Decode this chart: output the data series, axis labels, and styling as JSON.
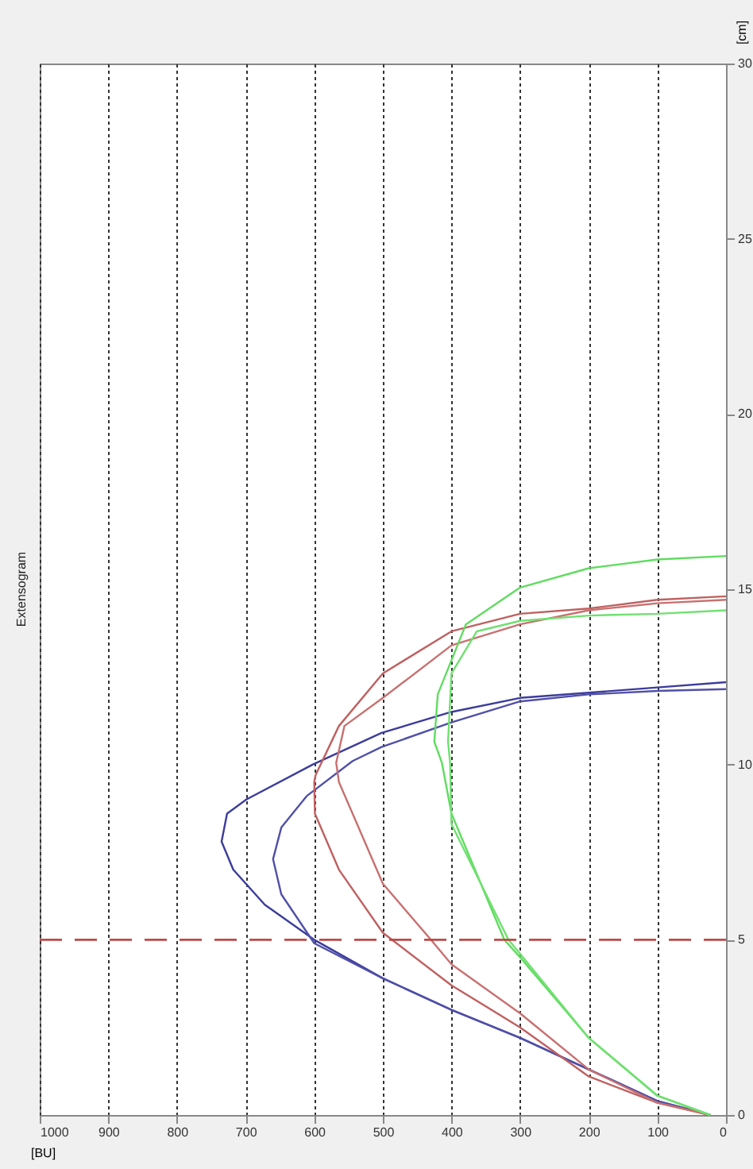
{
  "chart_data": {
    "type": "line",
    "title": "Extensogram",
    "xlabel": "[BU]",
    "ylabel": "[cm]",
    "xlim": [
      1000,
      0
    ],
    "xticks": [
      1000,
      900,
      800,
      700,
      600,
      500,
      400,
      300,
      200,
      100,
      0
    ],
    "ylim": [
      0,
      30
    ],
    "yticks": [
      0,
      5,
      10,
      15,
      20,
      25,
      30
    ],
    "grid": "x",
    "ref_lines": [
      {
        "axis": "y",
        "value": 5,
        "color": "#c04848",
        "line_style": "dashed"
      }
    ],
    "series": [
      {
        "color": "#3c3c9c",
        "x": [
          23,
          100,
          200,
          300,
          400,
          500,
          600,
          672,
          718,
          735,
          727,
          699,
          602,
          502,
          400,
          300,
          200,
          100,
          0
        ],
        "values": [
          0,
          0.4,
          1.3,
          2.2,
          3.0,
          3.9,
          5.0,
          6.0,
          7.0,
          7.8,
          8.6,
          9.0,
          10.0,
          10.9,
          11.5,
          11.9,
          12.05,
          12.2,
          12.35
        ]
      },
      {
        "color": "#5050a8",
        "x": [
          23,
          100,
          200,
          300,
          400,
          500,
          600,
          648,
          660,
          648,
          611,
          544,
          502,
          400,
          300,
          200,
          100,
          0
        ],
        "values": [
          0,
          0.4,
          1.3,
          2.2,
          3.0,
          3.9,
          4.9,
          6.3,
          7.3,
          8.2,
          9.1,
          10.1,
          10.5,
          11.2,
          11.8,
          12.0,
          12.1,
          12.15
        ]
      },
      {
        "color": "#c06060",
        "x": [
          23,
          100,
          200,
          300,
          400,
          500,
          564,
          599,
          600,
          598,
          564,
          500,
          400,
          300,
          200,
          100,
          0
        ],
        "values": [
          0,
          0.35,
          1.1,
          2.5,
          3.7,
          5.2,
          7.0,
          8.6,
          9.5,
          9.7,
          11.1,
          12.6,
          13.8,
          14.3,
          14.45,
          14.7,
          14.8
        ]
      },
      {
        "color": "#c87070",
        "x": [
          23,
          100,
          200,
          300,
          400,
          430,
          500,
          564,
          568,
          556,
          500,
          400,
          300,
          200,
          100,
          0
        ],
        "values": [
          0,
          0.35,
          1.3,
          2.9,
          4.3,
          5.0,
          6.6,
          9.5,
          10.05,
          11.1,
          11.9,
          13.4,
          14.0,
          14.4,
          14.6,
          14.7
        ]
      },
      {
        "color": "#60dc60",
        "x": [
          23,
          100,
          200,
          300,
          323,
          400,
          414,
          425,
          420,
          379,
          300,
          200,
          100,
          0
        ],
        "values": [
          0,
          0.55,
          2.2,
          4.5,
          5.0,
          8.6,
          10.05,
          10.65,
          12.0,
          14.0,
          15.05,
          15.6,
          15.85,
          15.95
        ]
      },
      {
        "color": "#70e070",
        "x": [
          23,
          100,
          200,
          300,
          317,
          400,
          402,
          405,
          400,
          363,
          300,
          200,
          100,
          0
        ],
        "values": [
          0,
          0.55,
          2.2,
          4.6,
          5.0,
          8.3,
          10.05,
          10.65,
          12.6,
          13.8,
          14.1,
          14.25,
          14.3,
          14.4
        ]
      }
    ]
  }
}
